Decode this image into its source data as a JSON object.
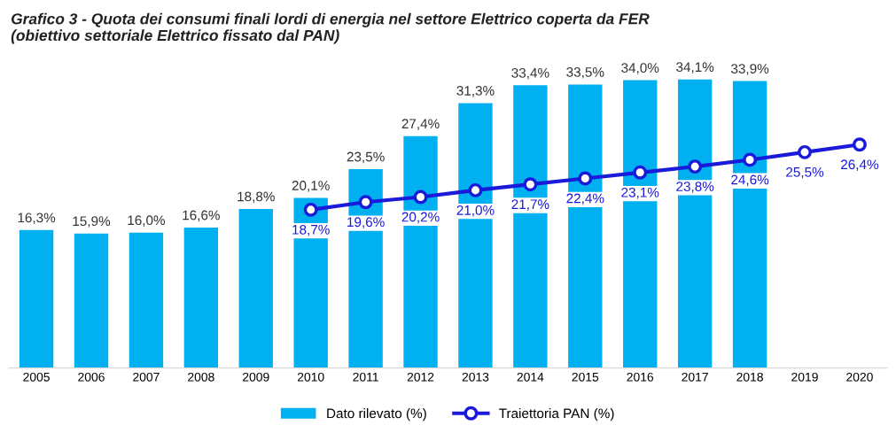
{
  "chart_data": {
    "type": "bar",
    "title": "Grafico 3 - Quota dei consumi finali lordi di energia nel settore Elettrico coperta da FER\n(obiettivo settoriale Elettrico fissato dal PAN)",
    "categories": [
      "2005",
      "2006",
      "2007",
      "2008",
      "2009",
      "2010",
      "2011",
      "2012",
      "2013",
      "2014",
      "2015",
      "2016",
      "2017",
      "2018",
      "2019",
      "2020"
    ],
    "series": [
      {
        "name": "Dato rilevato (%)",
        "color": "#00b0f0",
        "values": [
          16.3,
          15.9,
          16.0,
          16.6,
          18.8,
          20.1,
          23.5,
          27.4,
          31.3,
          33.4,
          33.5,
          34.0,
          34.1,
          33.9,
          null,
          null
        ],
        "value_labels": [
          "16,3%",
          "15,9%",
          "16,0%",
          "16,6%",
          "18,8%",
          "20,1%",
          "23,5%",
          "27,4%",
          "31,3%",
          "33,4%",
          "33,5%",
          "34,0%",
          "34,1%",
          "33,9%",
          null,
          null
        ]
      },
      {
        "name": "Traiettoria PAN (%)",
        "type": "line",
        "color": "#1a1adb",
        "marker": "circle",
        "line_style": "solid",
        "values": [
          null,
          null,
          null,
          null,
          null,
          18.7,
          19.6,
          20.2,
          21.0,
          21.7,
          22.4,
          23.1,
          23.8,
          24.6,
          25.5,
          26.4
        ],
        "value_labels": [
          null,
          null,
          null,
          null,
          null,
          "18,7%",
          "19,6%",
          "20,2%",
          "21,0%",
          "21,7%",
          "22,4%",
          "23,1%",
          "23,8%",
          "24,6%",
          "25,5%",
          "26,4%"
        ]
      }
    ],
    "tick_labels": "x",
    "grid": false,
    "legend": "bottom"
  }
}
